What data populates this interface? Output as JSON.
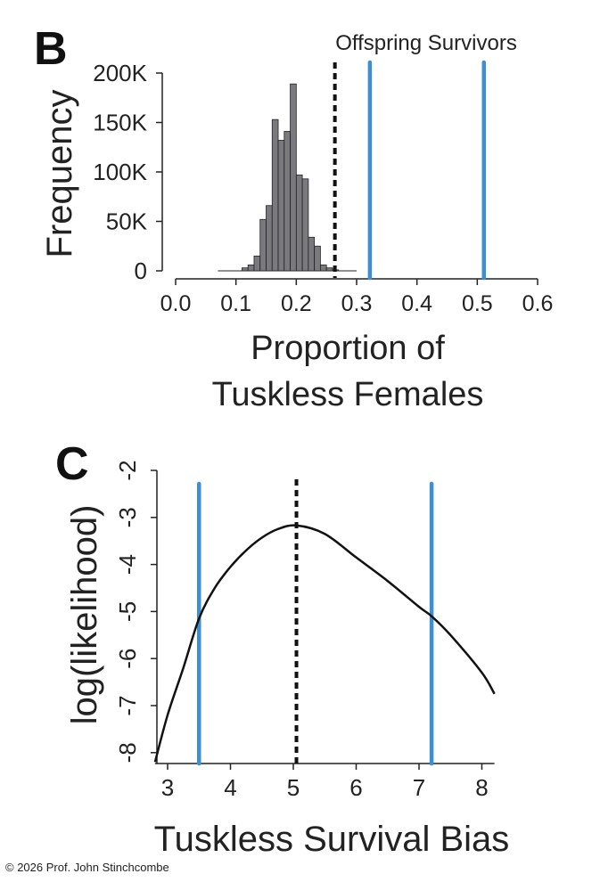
{
  "chart_data": [
    {
      "panel_label": "B",
      "type": "bar",
      "xlabel_lines": [
        "Proportion of",
        "Tuskless Females"
      ],
      "ylabel": "Frequency",
      "annotation": "Offspring Survivors",
      "xlim": [
        0.0,
        0.6
      ],
      "ylim": [
        0,
        200000
      ],
      "xticks": [
        "0.0",
        "0.1",
        "0.2",
        "0.3",
        "0.4",
        "0.5",
        "0.6"
      ],
      "yticks": [
        "0",
        "50K",
        "100K",
        "150K",
        "200K"
      ],
      "bin_width": 0.01,
      "bin_starts": [
        0.11,
        0.12,
        0.13,
        0.14,
        0.15,
        0.16,
        0.17,
        0.18,
        0.19,
        0.2,
        0.21,
        0.22,
        0.23,
        0.24,
        0.25,
        0.26
      ],
      "values": [
        3000,
        6000,
        15000,
        52000,
        66000,
        153000,
        132000,
        141000,
        189000,
        97000,
        93000,
        34000,
        25000,
        6000,
        3000,
        1000
      ],
      "range_line": [
        0.07,
        0.3
      ],
      "dashed_line_x": 0.264,
      "blue_lines_x": [
        0.322,
        0.511
      ],
      "bar_color": "#7a7a7e",
      "blue_color": "#3d8fd1"
    },
    {
      "panel_label": "C",
      "type": "line",
      "xlabel": "Tuskless Survival Bias",
      "ylabel": "log(likelihood)",
      "xlim": [
        2.8,
        8.2
      ],
      "ylim": [
        -8.2,
        -2
      ],
      "xticks": [
        "3",
        "4",
        "5",
        "6",
        "7",
        "8"
      ],
      "yticks": [
        "-2",
        "-3",
        "-4",
        "-5",
        "-6",
        "-7",
        "-8"
      ],
      "x": [
        2.8,
        3.0,
        3.25,
        3.5,
        3.75,
        4.0,
        4.25,
        4.5,
        4.75,
        5.05,
        5.5,
        6.0,
        6.5,
        7.0,
        7.2,
        7.5,
        8.0,
        8.2
      ],
      "y": [
        -8.2,
        -7.2,
        -6.2,
        -5.15,
        -4.5,
        -4.05,
        -3.7,
        -3.43,
        -3.25,
        -3.17,
        -3.35,
        -3.85,
        -4.35,
        -4.9,
        -5.1,
        -5.5,
        -6.3,
        -6.75
      ],
      "dashed_line_x": 5.05,
      "blue_lines_x": [
        3.5,
        7.2
      ],
      "blue_color": "#3d8fd1"
    }
  ],
  "copyright": "© 2026 Prof. John Stinchcombe"
}
